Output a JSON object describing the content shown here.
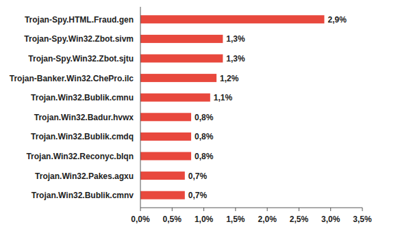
{
  "chart_data": {
    "type": "bar",
    "orientation": "horizontal",
    "categories": [
      "Trojan-Spy.HTML.Fraud.gen",
      "Trojan-Spy.Win32.Zbot.sivm",
      "Trojan-Spy.Win32.Zbot.sjtu",
      "Trojan-Banker.Win32.ChePro.ilc",
      "Trojan.Win32.Bublik.cmnu",
      "Trojan.Win32.Badur.hvwx",
      "Trojan.Win32.Bublik.cmdq",
      "Trojan.Win32.Reconyc.blqn",
      "Trojan.Win32.Pakes.agxu",
      "Trojan.Win32.Bublik.cmnv"
    ],
    "values": [
      2.9,
      1.3,
      1.3,
      1.2,
      1.1,
      0.8,
      0.8,
      0.8,
      0.7,
      0.7
    ],
    "value_labels": [
      "2,9%",
      "1,3%",
      "1,3%",
      "1,2%",
      "1,1%",
      "0,8%",
      "0,8%",
      "0,8%",
      "0,7%",
      "0,7%"
    ],
    "data_labels": true,
    "color": "#e8483d",
    "xlim": [
      0,
      3.5
    ],
    "xticks": [
      {
        "value": 0,
        "label": "0,0%"
      },
      {
        "value": 0.5,
        "label": "0,5%"
      },
      {
        "value": 1,
        "label": "1,0%"
      },
      {
        "value": 1.5,
        "label": "1,5%"
      },
      {
        "value": 2,
        "label": "2,0%"
      },
      {
        "value": 2.5,
        "label": "2,5%"
      },
      {
        "value": 3,
        "label": "3,0%"
      },
      {
        "value": 3.5,
        "label": "3,5%"
      }
    ],
    "grid": false
  }
}
